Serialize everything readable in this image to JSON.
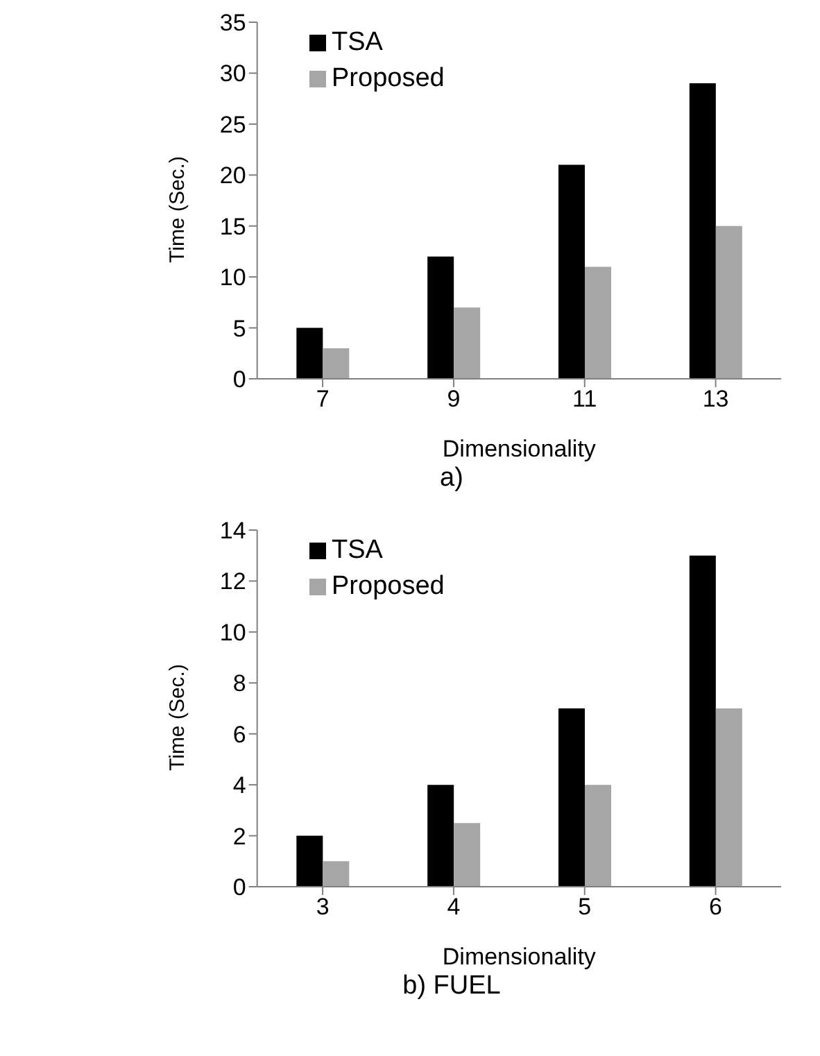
{
  "chart_data": [
    {
      "type": "bar",
      "title": "a)",
      "xlabel": "Dimensionality",
      "ylabel": "Time (Sec.)",
      "categories": [
        "7",
        "9",
        "11",
        "13"
      ],
      "series": [
        {
          "name": "TSA",
          "color": "#000000",
          "values": [
            5,
            12,
            21,
            29
          ]
        },
        {
          "name": "Proposed",
          "color": "#a6a6a6",
          "values": [
            3,
            7,
            11,
            15
          ]
        }
      ],
      "ylim": [
        0,
        35
      ],
      "yticks": [
        0,
        5,
        10,
        15,
        20,
        25,
        30,
        35
      ],
      "grid": false,
      "legend": "top left"
    },
    {
      "type": "bar",
      "title": "b)  FUEL",
      "xlabel": "Dimensionality",
      "ylabel": "Time (Sec.)",
      "categories": [
        "3",
        "4",
        "5",
        "6"
      ],
      "series": [
        {
          "name": "TSA",
          "color": "#000000",
          "values": [
            2,
            4,
            7,
            13
          ]
        },
        {
          "name": "Proposed",
          "color": "#a6a6a6",
          "values": [
            1,
            2.5,
            4,
            7
          ]
        }
      ],
      "ylim": [
        0,
        14
      ],
      "yticks": [
        0,
        2,
        4,
        6,
        8,
        10,
        12,
        14
      ],
      "grid": false,
      "legend": "top left"
    }
  ]
}
